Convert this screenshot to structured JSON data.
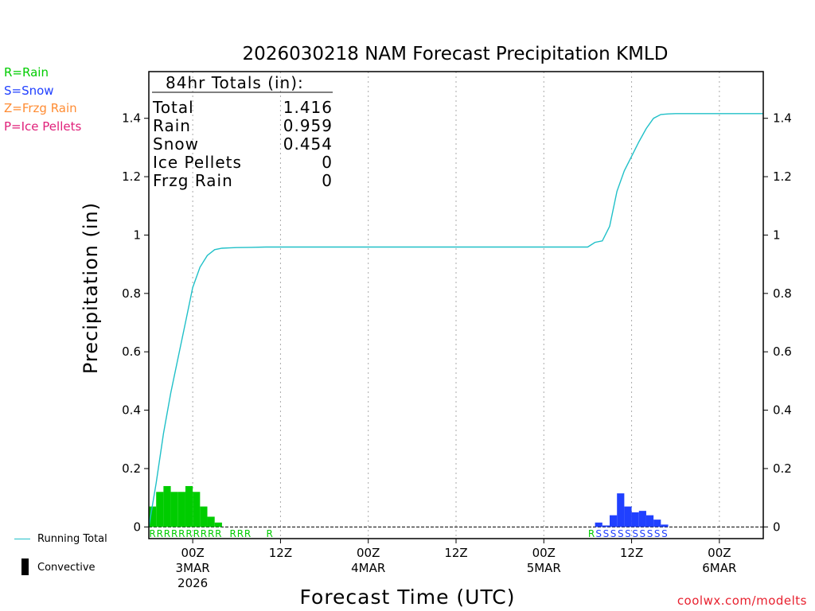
{
  "colors": {
    "rain": "#00cc00",
    "snow": "#2040ff",
    "frzg": "#ff8c33",
    "ice": "#e0207a",
    "running_total": "#20c0c8",
    "credit": "#e8202e"
  },
  "legend": {
    "rain": "R=Rain",
    "snow": "S=Snow",
    "frzg": "Z=Frzg Rain",
    "ice": "P=Ice Pellets",
    "running_total": "Running Total",
    "convective": "Convective"
  },
  "credit": "coolwx.com/modelts",
  "totals": {
    "header": "84hr Totals (in):",
    "rows": [
      {
        "label": "Total",
        "value": "1.416"
      },
      {
        "label": "Rain",
        "value": "0.959"
      },
      {
        "label": "Snow",
        "value": "0.454"
      },
      {
        "label": "Ice Pellets",
        "value": "0"
      },
      {
        "label": "Frzg Rain",
        "value": "0"
      }
    ]
  },
  "chart_data": {
    "type": "bar",
    "title": "2026030218 NAM Forecast Precipitation KMLD",
    "xlabel": "Forecast Time (UTC)",
    "ylabel": "Precipitation (in)",
    "ylim": [
      -0.04,
      1.56
    ],
    "xlim": [
      18,
      102
    ],
    "yticks": [
      0,
      0.2,
      0.4,
      0.6,
      0.8,
      1,
      1.2,
      1.4
    ],
    "ytick_labels": [
      "0",
      "0.2",
      "0.4",
      "0.6",
      "0.8",
      "1",
      "1.2",
      "1.4"
    ],
    "xticks": [
      {
        "hour": 24,
        "lines": [
          "00Z",
          "3MAR",
          "2026"
        ]
      },
      {
        "hour": 36,
        "lines": [
          "12Z"
        ]
      },
      {
        "hour": 48,
        "lines": [
          "00Z",
          "4MAR"
        ]
      },
      {
        "hour": 60,
        "lines": [
          "12Z"
        ]
      },
      {
        "hour": 72,
        "lines": [
          "00Z",
          "5MAR"
        ]
      },
      {
        "hour": 84,
        "lines": [
          "12Z"
        ]
      },
      {
        "hour": 96,
        "lines": [
          "00Z",
          "6MAR"
        ]
      }
    ],
    "bar_width_hours": 1,
    "series": [
      {
        "name": "Rain",
        "color": "#00cc00",
        "x": [
          18,
          19,
          20,
          21,
          22,
          23,
          24,
          25,
          26,
          27
        ],
        "values": [
          0.07,
          0.12,
          0.14,
          0.12,
          0.12,
          0.14,
          0.12,
          0.07,
          0.035,
          0.015
        ]
      },
      {
        "name": "Snow",
        "color": "#2040ff",
        "x": [
          79,
          80,
          81,
          82,
          83,
          84,
          85,
          86,
          87
        ],
        "values": [
          0.015,
          0.005,
          0.04,
          0.115,
          0.07,
          0.05,
          0.055,
          0.04,
          0.025
        ]
      },
      {
        "name": "Snow tail",
        "color": "#2040ff",
        "x": [
          88
        ],
        "values": [
          0.008
        ]
      },
      {
        "name": "Running Total",
        "type": "line",
        "color": "#20c0c8",
        "x": [
          18,
          19,
          20,
          21,
          22,
          23,
          24,
          25,
          26,
          27,
          28,
          29,
          30,
          32,
          34,
          36,
          40,
          48,
          60,
          72,
          78,
          79,
          80,
          81,
          82,
          83,
          84,
          85,
          86,
          87,
          88,
          89,
          90,
          92,
          96,
          102
        ],
        "values": [
          0.0,
          0.15,
          0.32,
          0.46,
          0.58,
          0.7,
          0.82,
          0.89,
          0.93,
          0.95,
          0.955,
          0.956,
          0.957,
          0.958,
          0.959,
          0.959,
          0.959,
          0.959,
          0.959,
          0.959,
          0.959,
          0.975,
          0.98,
          1.03,
          1.15,
          1.22,
          1.27,
          1.32,
          1.365,
          1.4,
          1.413,
          1.415,
          1.416,
          1.416,
          1.416,
          1.416
        ]
      }
    ],
    "type_strip": [
      {
        "hour": 18,
        "code": "R",
        "color": "#00cc00"
      },
      {
        "hour": 19,
        "code": "R",
        "color": "#00cc00"
      },
      {
        "hour": 20,
        "code": "R",
        "color": "#00cc00"
      },
      {
        "hour": 21,
        "code": "R",
        "color": "#00cc00"
      },
      {
        "hour": 22,
        "code": "R",
        "color": "#00cc00"
      },
      {
        "hour": 23,
        "code": "R",
        "color": "#00cc00"
      },
      {
        "hour": 24,
        "code": "R",
        "color": "#00cc00"
      },
      {
        "hour": 25,
        "code": "R",
        "color": "#00cc00"
      },
      {
        "hour": 26,
        "code": "R",
        "color": "#00cc00"
      },
      {
        "hour": 27,
        "code": "R",
        "color": "#00cc00"
      },
      {
        "hour": 29,
        "code": "R",
        "color": "#00cc00"
      },
      {
        "hour": 30,
        "code": "R",
        "color": "#00cc00"
      },
      {
        "hour": 31,
        "code": "R",
        "color": "#00cc00"
      },
      {
        "hour": 34,
        "code": "R",
        "color": "#00cc00"
      },
      {
        "hour": 78,
        "code": "R",
        "color": "#00cc00"
      },
      {
        "hour": 79,
        "code": "S",
        "color": "#2040ff"
      },
      {
        "hour": 80,
        "code": "S",
        "color": "#2040ff"
      },
      {
        "hour": 81,
        "code": "S",
        "color": "#2040ff"
      },
      {
        "hour": 82,
        "code": "S",
        "color": "#2040ff"
      },
      {
        "hour": 83,
        "code": "S",
        "color": "#2040ff"
      },
      {
        "hour": 84,
        "code": "S",
        "color": "#2040ff"
      },
      {
        "hour": 85,
        "code": "S",
        "color": "#2040ff"
      },
      {
        "hour": 86,
        "code": "S",
        "color": "#2040ff"
      },
      {
        "hour": 87,
        "code": "S",
        "color": "#2040ff"
      },
      {
        "hour": 88,
        "code": "S",
        "color": "#2040ff"
      }
    ]
  }
}
